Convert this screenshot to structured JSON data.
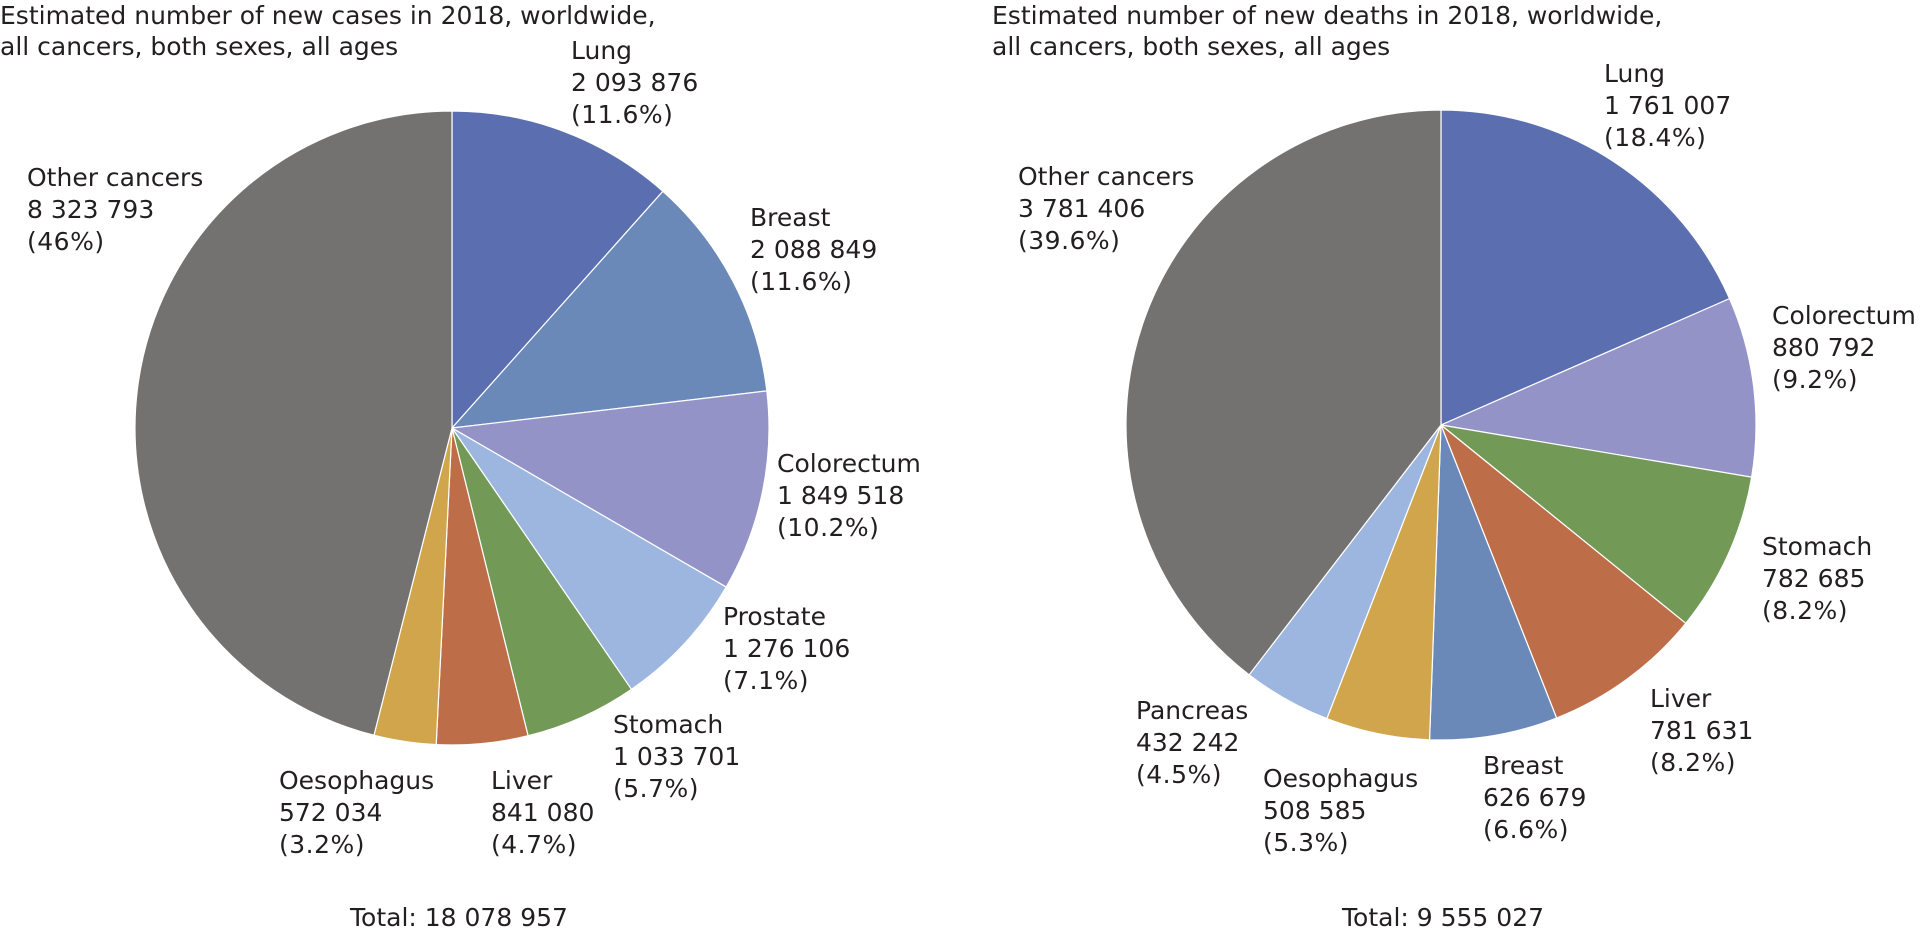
{
  "chart_data": [
    {
      "type": "pie",
      "title": [
        "Estimated number of new cases in 2018, worldwide,",
        "all cancers, both sexes, all ages"
      ],
      "total_label": "Total:",
      "total_value": "18 078 957",
      "slices": [
        {
          "name": "Lung",
          "value_text": "2 093 876",
          "percent_text": "(11.6%)",
          "value": 2093876,
          "color": "#5a6eb0"
        },
        {
          "name": "Breast",
          "value_text": "2 088 849",
          "percent_text": "(11.6%)",
          "value": 2088849,
          "color": "#6a89b9"
        },
        {
          "name": "Colorectum",
          "value_text": "1 849 518",
          "percent_text": "(10.2%)",
          "value": 1849518,
          "color": "#9493c7"
        },
        {
          "name": "Prostate",
          "value_text": "1 276 106",
          "percent_text": "(7.1%)",
          "value": 1276106,
          "color": "#9db6df"
        },
        {
          "name": "Stomach",
          "value_text": "1 033 701",
          "percent_text": "(5.7%)",
          "value": 1033701,
          "color": "#729956"
        },
        {
          "name": "Liver",
          "value_text": "841 080",
          "percent_text": "(4.7%)",
          "value": 841080,
          "color": "#bd6e48"
        },
        {
          "name": "Oesophagus",
          "value_text": "572 034",
          "percent_text": "(3.2%)",
          "value": 572034,
          "color": "#d0a54b"
        },
        {
          "name": "Other cancers",
          "value_text": "8 323 793",
          "percent_text": "(46%)",
          "value": 8323793,
          "color": "#737271"
        }
      ]
    },
    {
      "type": "pie",
      "title": [
        "Estimated number of new deaths in 2018, worldwide,",
        "all cancers, both sexes, all ages"
      ],
      "total_label": "Total:",
      "total_value": "9 555 027",
      "slices": [
        {
          "name": "Lung",
          "value_text": "1 761 007",
          "percent_text": "(18.4%)",
          "value": 1761007,
          "color": "#5a6eb0"
        },
        {
          "name": "Colorectum",
          "value_text": "880 792",
          "percent_text": "(9.2%)",
          "value": 880792,
          "color": "#9493c7"
        },
        {
          "name": "Stomach",
          "value_text": "782 685",
          "percent_text": "(8.2%)",
          "value": 782685,
          "color": "#729956"
        },
        {
          "name": "Liver",
          "value_text": "781 631",
          "percent_text": "(8.2%)",
          "value": 781631,
          "color": "#bd6e48"
        },
        {
          "name": "Breast",
          "value_text": "626 679",
          "percent_text": "(6.6%)",
          "value": 626679,
          "color": "#6a89b9"
        },
        {
          "name": "Oesophagus",
          "value_text": "508 585",
          "percent_text": "(5.3%)",
          "value": 508585,
          "color": "#d0a54b"
        },
        {
          "name": "Pancreas",
          "value_text": "432 242",
          "percent_text": "(4.5%)",
          "value": 432242,
          "color": "#9db6df"
        },
        {
          "name": "Other cancers",
          "value_text": "3 781 406",
          "percent_text": "(39.6%)",
          "value": 3781406,
          "color": "#737271"
        }
      ]
    }
  ]
}
